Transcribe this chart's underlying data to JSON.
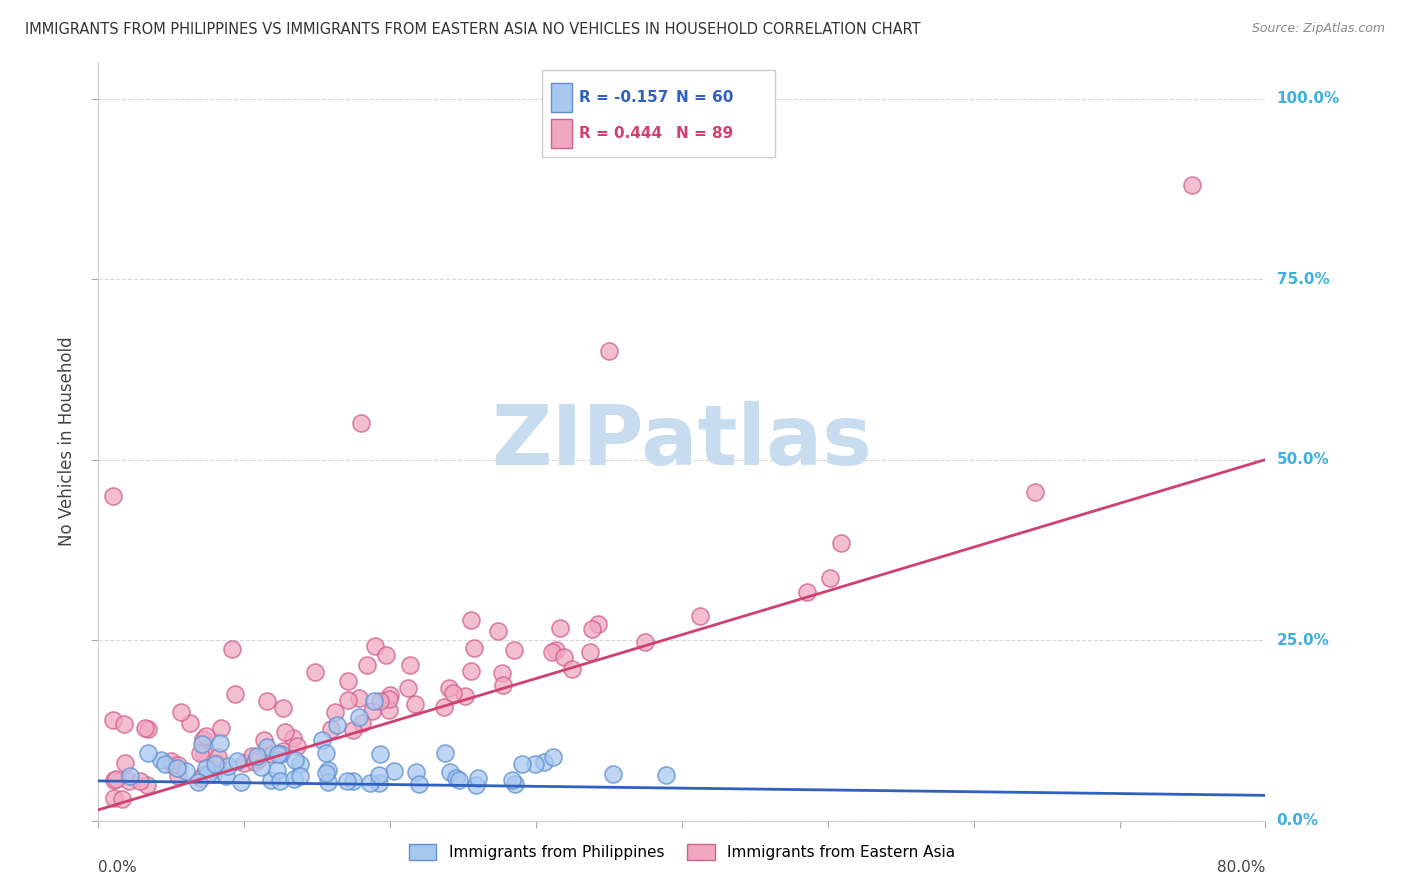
{
  "title": "IMMIGRANTS FROM PHILIPPINES VS IMMIGRANTS FROM EASTERN ASIA NO VEHICLES IN HOUSEHOLD CORRELATION CHART",
  "source": "Source: ZipAtlas.com",
  "ylabel": "No Vehicles in Household",
  "yticks": [
    "0.0%",
    "25.0%",
    "50.0%",
    "75.0%",
    "100.0%"
  ],
  "ytick_vals": [
    0.0,
    0.25,
    0.5,
    0.75,
    1.0
  ],
  "xlim": [
    0.0,
    0.8
  ],
  "ylim": [
    0.0,
    1.05
  ],
  "legend_r1": "R = -0.157",
  "legend_n1": "N = 60",
  "legend_r2": "R = 0.444",
  "legend_n2": "N = 89",
  "color_phil": "#A8C8F0",
  "color_east": "#F0A8C0",
  "color_phil_edge": "#6090D0",
  "color_east_edge": "#D06090",
  "color_line_phil": "#3060C0",
  "color_line_east": "#D04070",
  "color_legend_text_blue": "#3060C0",
  "color_legend_text_pink": "#D04070",
  "color_ytick": "#3CB0E0",
  "phil_line_x": [
    0.0,
    0.8
  ],
  "phil_line_y": [
    0.055,
    0.035
  ],
  "east_line_x": [
    0.0,
    0.8
  ],
  "east_line_y": [
    0.015,
    0.5
  ],
  "background_color": "#FFFFFF",
  "grid_color": "#CCCCCC",
  "watermark_text": "ZIPatlas",
  "watermark_color": "#C8DCF0",
  "legend_bottom_labels": [
    "Immigrants from Philippines",
    "Immigrants from Eastern Asia"
  ]
}
